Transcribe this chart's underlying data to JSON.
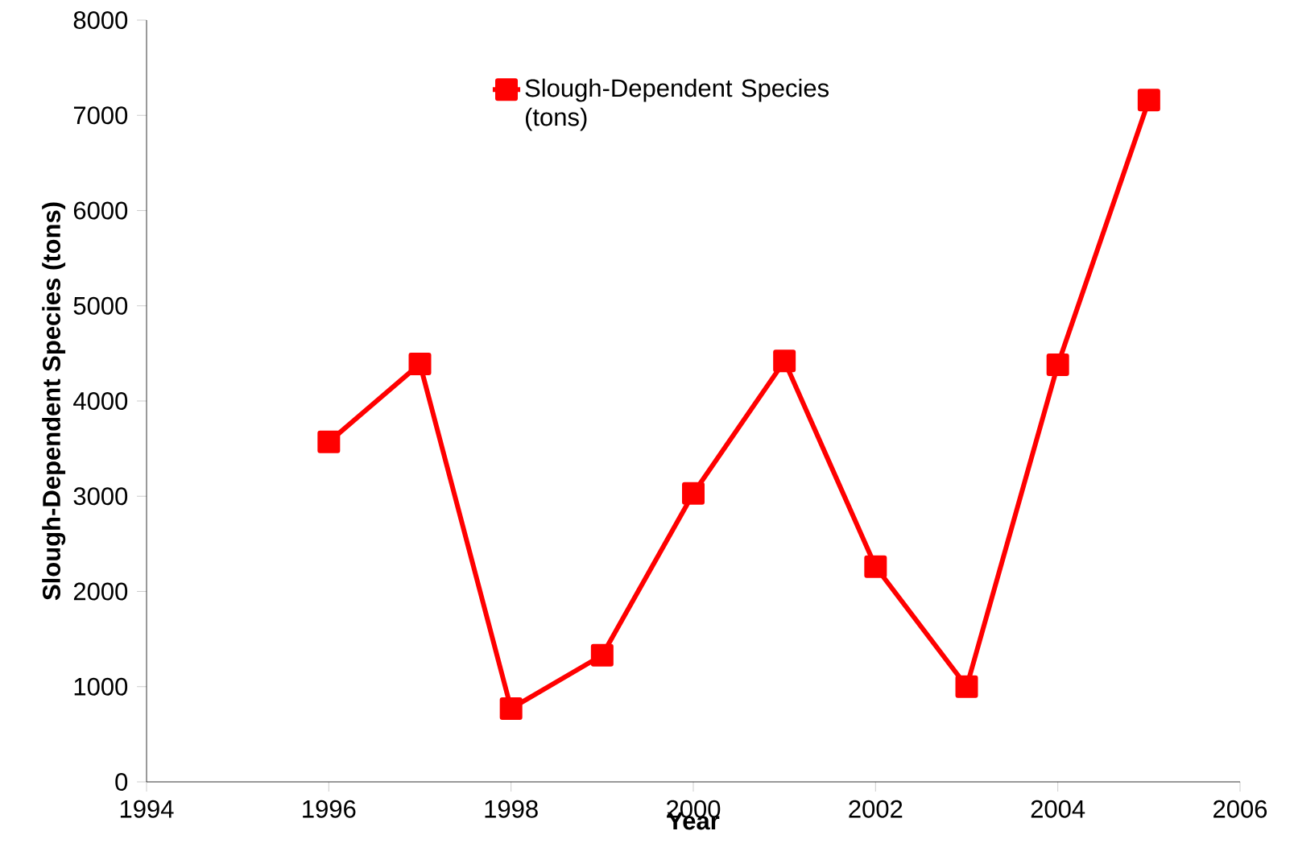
{
  "chart_data": {
    "type": "line",
    "xlabel": "Year",
    "ylabel": "Slough-Dependent Species (tons)",
    "x": [
      1996,
      1997,
      1998,
      1999,
      2000,
      2001,
      2002,
      2003,
      2004,
      2005
    ],
    "series": [
      {
        "name": "Slough-Dependent Species (tons)",
        "color": "#ff0000",
        "values": [
          3570,
          4390,
          770,
          1330,
          3030,
          4420,
          2260,
          1000,
          4380,
          7160
        ]
      }
    ],
    "xlim": [
      1994,
      2006
    ],
    "xticks": [
      1994,
      1996,
      1998,
      2000,
      2002,
      2004,
      2006
    ],
    "ylim": [
      0,
      8000
    ],
    "yticks": [
      0,
      1000,
      2000,
      3000,
      4000,
      5000,
      6000,
      7000,
      8000
    ],
    "grid": false,
    "legend": "top",
    "marker": "square",
    "line_style": "solid"
  }
}
